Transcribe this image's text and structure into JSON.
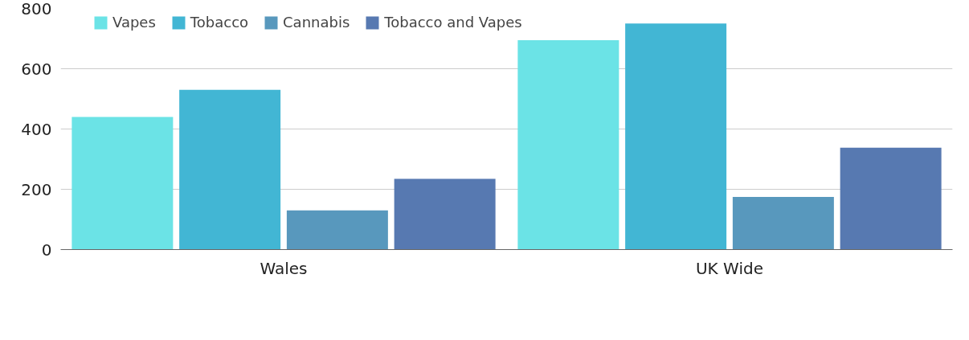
{
  "chart_data": {
    "type": "bar",
    "categories": [
      "Wales",
      "UK Wide"
    ],
    "series": [
      {
        "name": "Vapes",
        "color": "#6be3e6",
        "values": [
          440,
          695
        ]
      },
      {
        "name": "Tobacco",
        "color": "#42b6d4",
        "values": [
          530,
          750
        ]
      },
      {
        "name": "Cannabis",
        "color": "#5898bd",
        "values": [
          130,
          175
        ]
      },
      {
        "name": "Tobacco and Vapes",
        "color": "#5779b1",
        "values": [
          235,
          338
        ]
      }
    ],
    "ylim": [
      0,
      800
    ],
    "yticks": [
      0,
      200,
      400,
      600,
      800
    ],
    "grid": "y",
    "legend": "top"
  }
}
